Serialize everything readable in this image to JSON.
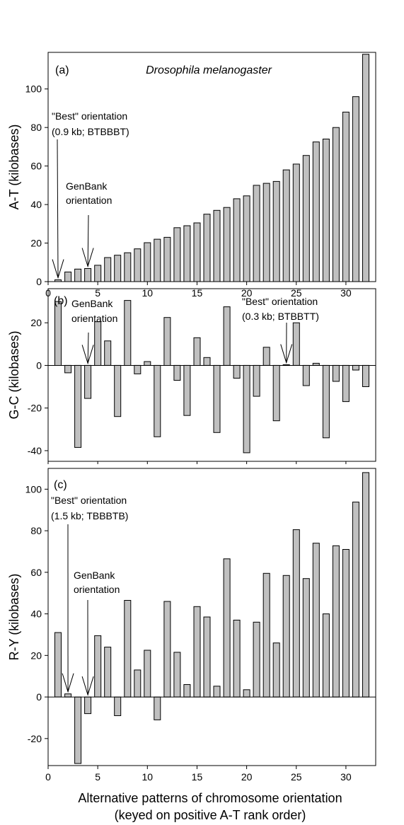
{
  "colors": {
    "bar_fill": "#c0c0c0",
    "bar_stroke": "#000000",
    "axis": "#000000"
  },
  "xlabel_line1": "Alternative patterns of chromosome orientation",
  "xlabel_line2": "(keyed on positive A-T rank order)",
  "chart_data": [
    {
      "type": "bar",
      "panel_label": "(a)",
      "title": "Drosophila melanogaster",
      "ylabel": "A-T (kilobases)",
      "xlim": [
        0,
        33
      ],
      "ylim": [
        0,
        119
      ],
      "yticks": [
        0,
        20,
        40,
        60,
        80,
        100
      ],
      "xticks": [
        0,
        5,
        10,
        15,
        20,
        25,
        30
      ],
      "x": [
        1,
        2,
        3,
        4,
        5,
        6,
        7,
        8,
        9,
        10,
        11,
        12,
        13,
        14,
        15,
        16,
        17,
        18,
        19,
        20,
        21,
        22,
        23,
        24,
        25,
        26,
        27,
        28,
        29,
        30,
        31,
        32
      ],
      "values": [
        0.9,
        5,
        6.5,
        6.8,
        8.5,
        12.5,
        13.7,
        15,
        17,
        20.2,
        22,
        23,
        28,
        29,
        30.5,
        35,
        37,
        38.5,
        43,
        44.5,
        50,
        51,
        52,
        58,
        61,
        65.5,
        72.5,
        74,
        80,
        88,
        96,
        118
      ],
      "annotations": [
        {
          "lines": [
            "\"Best\" orientation",
            "(0.9 kb; BTBBBT)"
          ],
          "points_to": [
            1,
            0.9
          ]
        },
        {
          "lines": [
            "GenBank",
            "orientation"
          ],
          "points_to": [
            4,
            6.8
          ]
        }
      ]
    },
    {
      "type": "bar",
      "panel_label": "(b)",
      "ylabel": "G-C (kilobases)",
      "xlim": [
        0,
        33
      ],
      "ylim": [
        -45,
        36
      ],
      "yticks": [
        -40,
        -20,
        0,
        20
      ],
      "x": [
        1,
        2,
        3,
        4,
        5,
        6,
        7,
        8,
        9,
        10,
        11,
        12,
        13,
        14,
        15,
        16,
        17,
        18,
        19,
        20,
        21,
        22,
        23,
        24,
        25,
        26,
        27,
        28,
        29,
        30,
        31,
        32
      ],
      "values": [
        30,
        -3.5,
        -38.5,
        -15.5,
        20.5,
        11.5,
        -24,
        30.5,
        -4,
        1.8,
        -33.5,
        22.5,
        -7,
        -23.5,
        13,
        3.7,
        -31.5,
        27.5,
        -6,
        -41,
        -14.5,
        8.5,
        -26,
        0.3,
        20,
        -9.5,
        1,
        -34,
        -7.5,
        -17,
        -2.2,
        -10
      ],
      "annotations": [
        {
          "lines": [
            "GenBank",
            "orientation"
          ],
          "points_to": [
            4,
            0
          ]
        },
        {
          "lines": [
            "\"Best\" orientation",
            "(0.3 kb; BTBBTT)"
          ],
          "points_to": [
            24,
            0.3
          ]
        }
      ]
    },
    {
      "type": "bar",
      "panel_label": "(c)",
      "ylabel": "R-Y (kilobases)",
      "xlim": [
        0,
        33
      ],
      "ylim": [
        -33,
        110
      ],
      "yticks": [
        -20,
        0,
        20,
        40,
        60,
        80,
        100
      ],
      "xticks": [
        0,
        5,
        10,
        15,
        20,
        25,
        30
      ],
      "x": [
        1,
        2,
        3,
        4,
        5,
        6,
        7,
        8,
        9,
        10,
        11,
        12,
        13,
        14,
        15,
        16,
        17,
        18,
        19,
        20,
        21,
        22,
        23,
        24,
        25,
        26,
        27,
        28,
        29,
        30,
        31,
        32
      ],
      "values": [
        31,
        1.5,
        -32,
        -8,
        29.5,
        24,
        -9,
        46.5,
        13,
        22.5,
        -11,
        46,
        21.5,
        6,
        43.5,
        38.5,
        5.2,
        66.5,
        37,
        3.5,
        36,
        59.5,
        26,
        58.5,
        80.5,
        57,
        74,
        40,
        72.8,
        71,
        93.8,
        108
      ],
      "annotations": [
        {
          "lines": [
            "\"Best\" orientation",
            "(1.5 kb; TBBBTB)"
          ],
          "points_to": [
            2,
            1.5
          ]
        },
        {
          "lines": [
            "GenBank",
            "orientation"
          ],
          "points_to": [
            4,
            0
          ]
        }
      ]
    }
  ]
}
